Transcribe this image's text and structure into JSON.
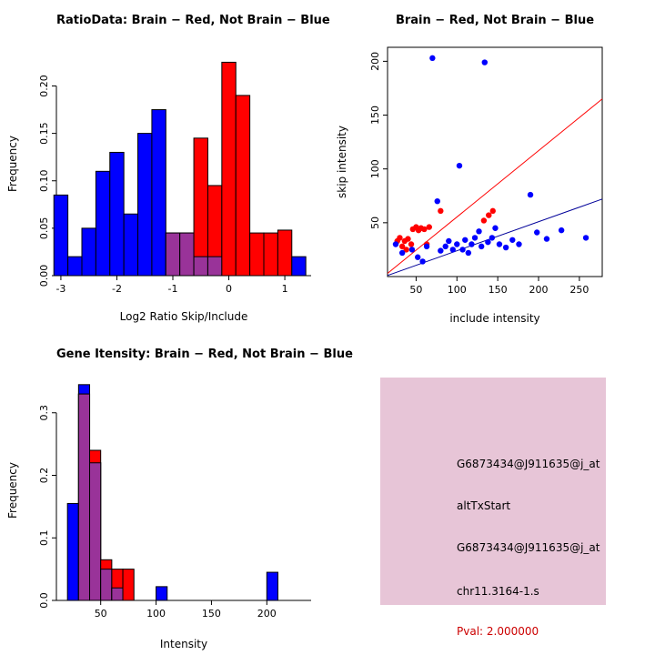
{
  "chart_data": [
    {
      "id": "chart-ratio",
      "type": "histogram",
      "title": "RatioData: Brain − Red, Not Brain − Blue",
      "xlabel": "Log2 Ratio Skip/Include",
      "ylabel": "Frequency",
      "xlim": [
        -3.08,
        1.47
      ],
      "ylim": [
        0,
        0.235
      ],
      "xticks": [
        -3,
        -2,
        -1,
        0,
        1
      ],
      "xtick_labels": [
        "-3",
        "-2",
        "-1",
        "0",
        "1"
      ],
      "yticks": [
        0,
        0.05,
        0.1,
        0.15,
        0.2
      ],
      "ytick_labels": [
        "0.00",
        "0.05",
        "0.10",
        "0.15",
        "0.20"
      ],
      "box": false,
      "bin_width": 0.25,
      "bins": [
        -3.125,
        -2.875,
        -2.625,
        -2.375,
        -2.125,
        -1.875,
        -1.625,
        -1.375,
        -1.125,
        -0.875,
        -0.625,
        -0.375,
        -0.125,
        0.125,
        0.375,
        0.625,
        0.875,
        1.125
      ],
      "series": {
        "blue": [
          0.085,
          0.02,
          0.05,
          0.11,
          0.13,
          0.065,
          0.15,
          0.175,
          0.045,
          0.045,
          0.02,
          0.02,
          0,
          0,
          0,
          0,
          0,
          0.02
        ],
        "red": [
          0,
          0,
          0,
          0,
          0,
          0,
          0,
          0,
          0.045,
          0.045,
          0.145,
          0.095,
          0.225,
          0.19,
          0.045,
          0.045,
          0.048,
          0
        ]
      },
      "colors": {
        "blue": "#0000FF",
        "red": "#FF0000",
        "overlap": "#993399"
      },
      "legend_note": "blue = Not Brain, red = Brain"
    },
    {
      "id": "chart-scatter",
      "type": "scatter",
      "title": "Brain − Red, Not Brain − Blue",
      "xlabel": "include intensity",
      "ylabel": "skip intensity",
      "xlim": [
        15,
        278
      ],
      "ylim": [
        0,
        213
      ],
      "xticks": [
        50,
        100,
        150,
        200,
        250
      ],
      "xtick_labels": [
        "50",
        "100",
        "150",
        "200",
        "250"
      ],
      "yticks": [
        50,
        100,
        150,
        200
      ],
      "ytick_labels": [
        "50",
        "100",
        "150",
        "200"
      ],
      "box": true,
      "points_series": [
        {
          "name": "brain",
          "color": "#FF0000",
          "points": [
            [
              27,
              33
            ],
            [
              30,
              36
            ],
            [
              33,
              28
            ],
            [
              36,
              33
            ],
            [
              38,
              25
            ],
            [
              40,
              35
            ],
            [
              44,
              30
            ],
            [
              46,
              44
            ],
            [
              50,
              46
            ],
            [
              53,
              43
            ],
            [
              56,
              45
            ],
            [
              60,
              44
            ],
            [
              63,
              30
            ],
            [
              66,
              46
            ],
            [
              80,
              61
            ],
            [
              133,
              52
            ],
            [
              139,
              57
            ],
            [
              144,
              61
            ]
          ]
        },
        {
          "name": "not-brain",
          "color": "#0000FF",
          "points": [
            [
              25,
              30
            ],
            [
              33,
              22
            ],
            [
              45,
              25
            ],
            [
              52,
              18
            ],
            [
              58,
              14
            ],
            [
              63,
              28
            ],
            [
              70,
              203
            ],
            [
              76,
              70
            ],
            [
              80,
              24
            ],
            [
              86,
              28
            ],
            [
              90,
              33
            ],
            [
              95,
              25
            ],
            [
              100,
              30
            ],
            [
              103,
              103
            ],
            [
              107,
              25
            ],
            [
              110,
              34
            ],
            [
              114,
              22
            ],
            [
              118,
              30
            ],
            [
              122,
              36
            ],
            [
              127,
              42
            ],
            [
              130,
              28
            ],
            [
              134,
              199
            ],
            [
              138,
              32
            ],
            [
              143,
              36
            ],
            [
              147,
              45
            ],
            [
              152,
              30
            ],
            [
              160,
              27
            ],
            [
              168,
              34
            ],
            [
              176,
              30
            ],
            [
              190,
              76
            ],
            [
              198,
              41
            ],
            [
              210,
              35
            ],
            [
              228,
              43
            ],
            [
              258,
              36
            ]
          ]
        }
      ],
      "lines": [
        {
          "name": "brain-fit",
          "color": "#FF0000",
          "x1": 15,
          "y1": 3,
          "x2": 278,
          "y2": 165
        },
        {
          "name": "not-brain-fit",
          "color": "#000099",
          "x1": 15,
          "y1": 1,
          "x2": 278,
          "y2": 72
        }
      ]
    },
    {
      "id": "chart-gene",
      "type": "histogram",
      "title": "Gene Itensity: Brain − Red, Not Brain − Blue",
      "xlabel": "Intensity",
      "ylabel": "Frequency",
      "xlim": [
        10,
        240
      ],
      "ylim": [
        0,
        0.352
      ],
      "xticks": [
        50,
        100,
        150,
        200
      ],
      "xtick_labels": [
        "50",
        "100",
        "150",
        "200"
      ],
      "yticks": [
        0,
        0.1,
        0.2,
        0.3
      ],
      "ytick_labels": [
        "0.0",
        "0.1",
        "0.2",
        "0.3"
      ],
      "box": false,
      "bin_width": 10,
      "bins": [
        20,
        30,
        40,
        50,
        60,
        70,
        80,
        90,
        100,
        110,
        120,
        130,
        140,
        150,
        160,
        170,
        180,
        190,
        200
      ],
      "series": {
        "blue": [
          0.155,
          0.345,
          0.22,
          0.05,
          0.02,
          0,
          0,
          0,
          0.022,
          0,
          0,
          0,
          0,
          0,
          0,
          0,
          0,
          0,
          0.045
        ],
        "red": [
          0,
          0.33,
          0.24,
          0.065,
          0.05,
          0.05,
          0,
          0,
          0,
          0,
          0,
          0,
          0,
          0,
          0,
          0,
          0,
          0,
          0
        ]
      },
      "colors": {
        "blue": "#0000FF",
        "red": "#FF0000",
        "overlap": "#993399"
      },
      "legend_note": "blue = Not Brain, red = Brain"
    }
  ],
  "info_panel": {
    "bg": "#E7C5D7",
    "lines": [
      {
        "text": "G6873434@J911635@j_at",
        "color": "#000000"
      },
      {
        "text": "altTxStart",
        "color": "#000000"
      },
      {
        "text": "G6873434@J911635@j_at",
        "color": "#000000"
      },
      {
        "text": "chr11.3164-1.s",
        "color": "#000000"
      },
      {
        "text": "Pval: 2.000000",
        "color": "#CC0000"
      }
    ]
  }
}
